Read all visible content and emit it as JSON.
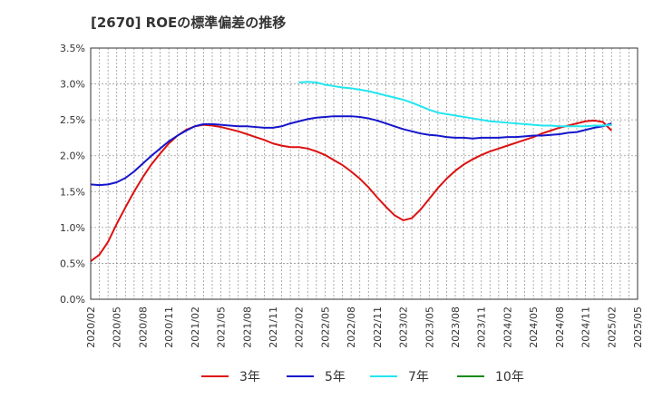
{
  "chart_data": {
    "type": "line",
    "title": "[2670]  ROEの標準偏差の推移",
    "xlabel": "",
    "ylabel": "",
    "ylim": [
      0,
      3.5
    ],
    "yticks": [
      "0.0%",
      "0.5%",
      "1.0%",
      "1.5%",
      "2.0%",
      "2.5%",
      "3.0%",
      "3.5%"
    ],
    "x_ticks": [
      "2020/02",
      "2020/05",
      "2020/08",
      "2020/11",
      "2021/02",
      "2021/05",
      "2021/08",
      "2021/11",
      "2022/02",
      "2022/05",
      "2022/08",
      "2022/11",
      "2023/02",
      "2023/05",
      "2023/08",
      "2023/11",
      "2024/02",
      "2024/05",
      "2024/08",
      "2024/11",
      "2025/02",
      "2025/05"
    ],
    "grid": true,
    "legend_position": "bottom",
    "series": [
      {
        "name": "3年",
        "color": "#dd1111",
        "points": [
          [
            0,
            0.53
          ],
          [
            1,
            0.62
          ],
          [
            2,
            0.8
          ],
          [
            3,
            1.05
          ],
          [
            4,
            1.28
          ],
          [
            5,
            1.5
          ],
          [
            6,
            1.7
          ],
          [
            7,
            1.88
          ],
          [
            8,
            2.03
          ],
          [
            9,
            2.17
          ],
          [
            10,
            2.28
          ],
          [
            11,
            2.36
          ],
          [
            12,
            2.41
          ],
          [
            13,
            2.43
          ],
          [
            14,
            2.42
          ],
          [
            15,
            2.4
          ],
          [
            16,
            2.37
          ],
          [
            17,
            2.34
          ],
          [
            18,
            2.3
          ],
          [
            19,
            2.26
          ],
          [
            20,
            2.22
          ],
          [
            21,
            2.17
          ],
          [
            22,
            2.14
          ],
          [
            23,
            2.12
          ],
          [
            24,
            2.12
          ],
          [
            25,
            2.1
          ],
          [
            26,
            2.06
          ],
          [
            27,
            2.01
          ],
          [
            28,
            1.94
          ],
          [
            29,
            1.87
          ],
          [
            30,
            1.78
          ],
          [
            31,
            1.68
          ],
          [
            32,
            1.56
          ],
          [
            33,
            1.42
          ],
          [
            34,
            1.29
          ],
          [
            35,
            1.17
          ],
          [
            36,
            1.1
          ],
          [
            37,
            1.13
          ],
          [
            38,
            1.25
          ],
          [
            39,
            1.4
          ],
          [
            40,
            1.55
          ],
          [
            41,
            1.68
          ],
          [
            42,
            1.79
          ],
          [
            43,
            1.88
          ],
          [
            44,
            1.95
          ],
          [
            45,
            2.01
          ],
          [
            46,
            2.06
          ],
          [
            47,
            2.1
          ],
          [
            48,
            2.14
          ],
          [
            49,
            2.18
          ],
          [
            50,
            2.22
          ],
          [
            51,
            2.26
          ],
          [
            52,
            2.31
          ],
          [
            53,
            2.35
          ],
          [
            54,
            2.39
          ],
          [
            55,
            2.42
          ],
          [
            56,
            2.45
          ],
          [
            57,
            2.48
          ],
          [
            58,
            2.49
          ],
          [
            59,
            2.47
          ],
          [
            60,
            2.35
          ]
        ]
      },
      {
        "name": "5年",
        "color": "#1515cc",
        "points": [
          [
            0,
            1.6
          ],
          [
            1,
            1.59
          ],
          [
            2,
            1.6
          ],
          [
            3,
            1.63
          ],
          [
            4,
            1.69
          ],
          [
            5,
            1.78
          ],
          [
            6,
            1.89
          ],
          [
            7,
            2.0
          ],
          [
            8,
            2.1
          ],
          [
            9,
            2.2
          ],
          [
            10,
            2.28
          ],
          [
            11,
            2.35
          ],
          [
            12,
            2.41
          ],
          [
            13,
            2.44
          ],
          [
            14,
            2.44
          ],
          [
            15,
            2.43
          ],
          [
            16,
            2.42
          ],
          [
            17,
            2.41
          ],
          [
            18,
            2.41
          ],
          [
            19,
            2.4
          ],
          [
            20,
            2.39
          ],
          [
            21,
            2.39
          ],
          [
            22,
            2.41
          ],
          [
            23,
            2.45
          ],
          [
            24,
            2.48
          ],
          [
            25,
            2.51
          ],
          [
            26,
            2.53
          ],
          [
            27,
            2.54
          ],
          [
            28,
            2.55
          ],
          [
            29,
            2.55
          ],
          [
            30,
            2.55
          ],
          [
            31,
            2.54
          ],
          [
            32,
            2.52
          ],
          [
            33,
            2.49
          ],
          [
            34,
            2.45
          ],
          [
            35,
            2.41
          ],
          [
            36,
            2.37
          ],
          [
            37,
            2.34
          ],
          [
            38,
            2.31
          ],
          [
            39,
            2.29
          ],
          [
            40,
            2.28
          ],
          [
            41,
            2.26
          ],
          [
            42,
            2.25
          ],
          [
            43,
            2.25
          ],
          [
            44,
            2.24
          ],
          [
            45,
            2.25
          ],
          [
            46,
            2.25
          ],
          [
            47,
            2.25
          ],
          [
            48,
            2.26
          ],
          [
            49,
            2.26
          ],
          [
            50,
            2.27
          ],
          [
            51,
            2.28
          ],
          [
            52,
            2.28
          ],
          [
            53,
            2.29
          ],
          [
            54,
            2.3
          ],
          [
            55,
            2.32
          ],
          [
            56,
            2.33
          ],
          [
            57,
            2.36
          ],
          [
            58,
            2.39
          ],
          [
            59,
            2.41
          ],
          [
            60,
            2.45
          ]
        ]
      },
      {
        "name": "7年",
        "color": "#22e6f0",
        "points": [
          [
            24,
            3.02
          ],
          [
            25,
            3.03
          ],
          [
            26,
            3.02
          ],
          [
            27,
            2.99
          ],
          [
            28,
            2.97
          ],
          [
            29,
            2.95
          ],
          [
            30,
            2.94
          ],
          [
            31,
            2.92
          ],
          [
            32,
            2.9
          ],
          [
            33,
            2.87
          ],
          [
            34,
            2.84
          ],
          [
            35,
            2.81
          ],
          [
            36,
            2.78
          ],
          [
            37,
            2.74
          ],
          [
            38,
            2.69
          ],
          [
            39,
            2.64
          ],
          [
            40,
            2.6
          ],
          [
            41,
            2.58
          ],
          [
            42,
            2.56
          ],
          [
            43,
            2.54
          ],
          [
            44,
            2.52
          ],
          [
            45,
            2.5
          ],
          [
            46,
            2.48
          ],
          [
            47,
            2.47
          ],
          [
            48,
            2.46
          ],
          [
            49,
            2.45
          ],
          [
            50,
            2.44
          ],
          [
            51,
            2.43
          ],
          [
            52,
            2.42
          ],
          [
            53,
            2.42
          ],
          [
            54,
            2.41
          ],
          [
            55,
            2.41
          ],
          [
            56,
            2.41
          ],
          [
            57,
            2.41
          ],
          [
            58,
            2.42
          ],
          [
            59,
            2.42
          ],
          [
            60,
            2.43
          ]
        ]
      },
      {
        "name": "10年",
        "color": "#1a8a1a",
        "points": []
      }
    ]
  }
}
